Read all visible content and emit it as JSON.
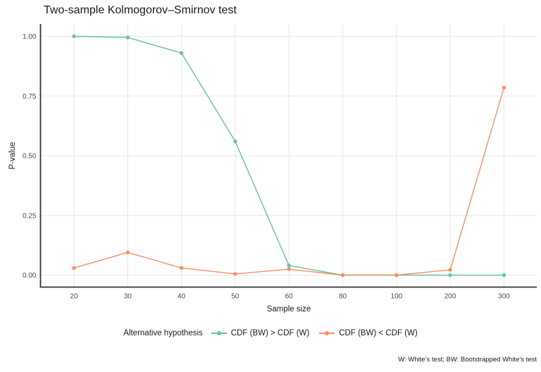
{
  "colors": {
    "background": "#FFFFFF",
    "grid": "#EBEBEB",
    "axis_line": "#333333",
    "tick_label": "#4D4D4D",
    "text": "#1A1A1A",
    "series_greater": "#66C2A5",
    "series_less": "#FC8D62"
  },
  "chart_data": {
    "type": "line",
    "title": "Two-sample Kolmogorov–Smirnov test",
    "xlabel": "Sample size",
    "ylabel": "P-value",
    "caption": "W: White’s test; BW: Bootstrapped White’s test",
    "legend_title": "Alternative hypothesis",
    "legend_position": "bottom",
    "grid": true,
    "x_scale": "discrete",
    "categories": [
      "20",
      "30",
      "40",
      "50",
      "60",
      "80",
      "100",
      "200",
      "300"
    ],
    "y_ticks": [
      {
        "label": "0.00",
        "value": 0.0
      },
      {
        "label": "0.25",
        "value": 0.25
      },
      {
        "label": "0.50",
        "value": 0.5
      },
      {
        "label": "0.75",
        "value": 0.75
      },
      {
        "label": "1.00",
        "value": 1.0
      }
    ],
    "ylim": [
      0,
      1
    ],
    "series": [
      {
        "name": "CDF (BW) > CDF (W)",
        "color": "#66C2A5",
        "values": [
          1.0,
          0.995,
          0.93,
          0.56,
          0.04,
          0.0,
          0.0,
          0.0,
          0.0
        ]
      },
      {
        "name": "CDF (BW) < CDF (W)",
        "color": "#FC8D62",
        "values": [
          0.03,
          0.095,
          0.03,
          0.005,
          0.025,
          0.0,
          0.0,
          0.022,
          0.785
        ]
      }
    ]
  }
}
